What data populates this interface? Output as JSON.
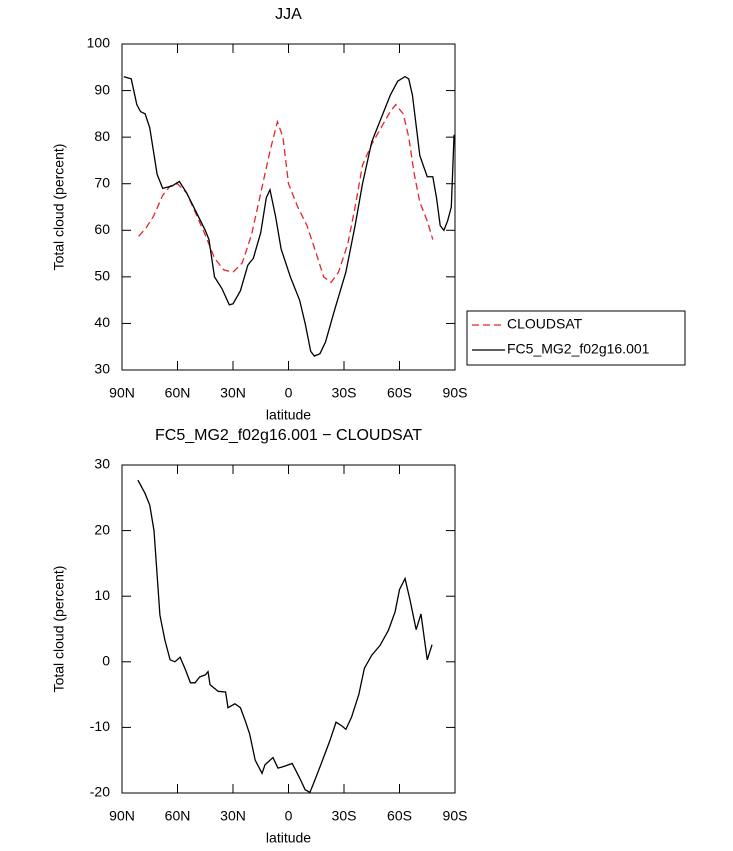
{
  "chart_data": [
    {
      "type": "line",
      "title": "JJA",
      "xlabel": "latitude",
      "ylabel": "Total cloud (percent)",
      "xlim": [
        90,
        -90
      ],
      "ylim": [
        30,
        100
      ],
      "xticks": [
        {
          "value": 90,
          "label": "90N"
        },
        {
          "value": 60,
          "label": "60N"
        },
        {
          "value": 30,
          "label": "30N"
        },
        0,
        {
          "value": -30,
          "label": "30S"
        },
        {
          "value": -60,
          "label": "60S"
        },
        {
          "value": -90,
          "label": "90S"
        }
      ],
      "yticks": [
        30,
        40,
        50,
        60,
        70,
        80,
        90,
        100
      ],
      "legend": "outside-right",
      "series": [
        {
          "name": "CLOUDSAT",
          "color": "#e3262b",
          "style": "dashed",
          "x": [
            81,
            77,
            73,
            68,
            64,
            60,
            55,
            50,
            45,
            40,
            35,
            30,
            25,
            20,
            15,
            10,
            6,
            3,
            0,
            -5,
            -10,
            -15,
            -19,
            -23,
            -27,
            -32,
            -36,
            -40,
            -45,
            -50,
            -55,
            -58,
            -62,
            -65,
            -68,
            -71,
            -75,
            -78
          ],
          "values": [
            58.7,
            60.5,
            63,
            67.5,
            69.5,
            70,
            68,
            63.5,
            59,
            54,
            51.5,
            51,
            53,
            59,
            68,
            77,
            83.3,
            80,
            70,
            65,
            61,
            55,
            50,
            48.8,
            51,
            57,
            65,
            74,
            78.5,
            82,
            85.5,
            87,
            85,
            80,
            72,
            66,
            62,
            58
          ]
        },
        {
          "name": "FC5_MG2_f02g16.001",
          "color": "#000000",
          "style": "solid",
          "x": [
            89,
            85,
            82,
            80,
            77.5,
            75,
            71,
            68,
            63,
            59,
            55,
            50,
            45,
            43,
            40,
            36,
            32,
            30,
            26,
            22,
            19,
            15,
            12,
            10,
            7,
            4,
            -1,
            -6,
            -9,
            -12,
            -14,
            -17,
            -20,
            -25,
            -31,
            -36,
            -40,
            -45,
            -51,
            -55,
            -59,
            -63,
            -65,
            -67,
            -71,
            -75,
            -78,
            -80,
            -82,
            -84,
            -86,
            -88,
            -89.5
          ],
          "values": [
            93,
            92.5,
            87,
            85.5,
            85,
            82,
            72,
            69,
            69.5,
            70.5,
            68,
            64,
            60,
            58,
            50,
            47.5,
            44,
            44.2,
            47,
            52.5,
            54,
            59.5,
            67,
            68.7,
            63,
            56,
            50,
            45,
            40,
            34,
            33,
            33.5,
            36,
            43,
            51,
            61,
            70,
            79,
            85,
            89,
            92,
            93,
            92.5,
            89,
            76,
            71.5,
            71.5,
            67,
            61,
            60,
            62,
            65,
            80.5
          ]
        }
      ]
    },
    {
      "type": "line",
      "title": "FC5_MG2_f02g16.001 − CLOUDSAT",
      "xlabel": "latitude",
      "ylabel": "Total cloud (percent)",
      "xlim": [
        90,
        -90
      ],
      "ylim": [
        -20,
        30
      ],
      "xticks": [
        {
          "value": 90,
          "label": "90N"
        },
        {
          "value": 60,
          "label": "60N"
        },
        {
          "value": 30,
          "label": "30N"
        },
        0,
        {
          "value": -30,
          "label": "30S"
        },
        {
          "value": -60,
          "label": "60S"
        },
        {
          "value": -90,
          "label": "90S"
        }
      ],
      "yticks": [
        -20,
        -10,
        0,
        10,
        20,
        30
      ],
      "series": [
        {
          "color": "#000000",
          "style": "solid",
          "x": [
            81.4,
            77.6,
            75,
            72.7,
            69.5,
            66.8,
            64,
            61.4,
            58.6,
            56,
            53,
            50.5,
            48,
            45,
            43.5,
            42.4,
            38,
            34,
            32.7,
            29,
            26,
            23.5,
            21,
            18,
            14.3,
            12.7,
            8.4,
            5.7,
            3,
            -2,
            -6,
            -9,
            -11.6,
            -14.3,
            -18,
            -22.4,
            -25.7,
            -29,
            -31,
            -34,
            -38,
            -41,
            -45,
            -49.5,
            -54,
            -57.6,
            -60,
            -63,
            -65.7,
            -69,
            -71.6,
            -75,
            -77.6
          ],
          "values": [
            27.7,
            25.7,
            23.9,
            20,
            7.1,
            3.3,
            0.3,
            0,
            0.7,
            -1,
            -3.2,
            -3.2,
            -2.3,
            -2,
            -1.5,
            -3.5,
            -4.5,
            -4.6,
            -7,
            -6.4,
            -7,
            -8.9,
            -11,
            -15,
            -17,
            -15.7,
            -14.6,
            -16.2,
            -16,
            -15.5,
            -17.7,
            -19.5,
            -19.9,
            -18,
            -15.3,
            -12,
            -9.2,
            -9.8,
            -10.3,
            -8.5,
            -5,
            -1,
            1,
            2.5,
            4.8,
            7.6,
            11,
            12.7,
            9.4,
            4.9,
            7.3,
            0.3,
            2.6
          ]
        }
      ]
    }
  ]
}
